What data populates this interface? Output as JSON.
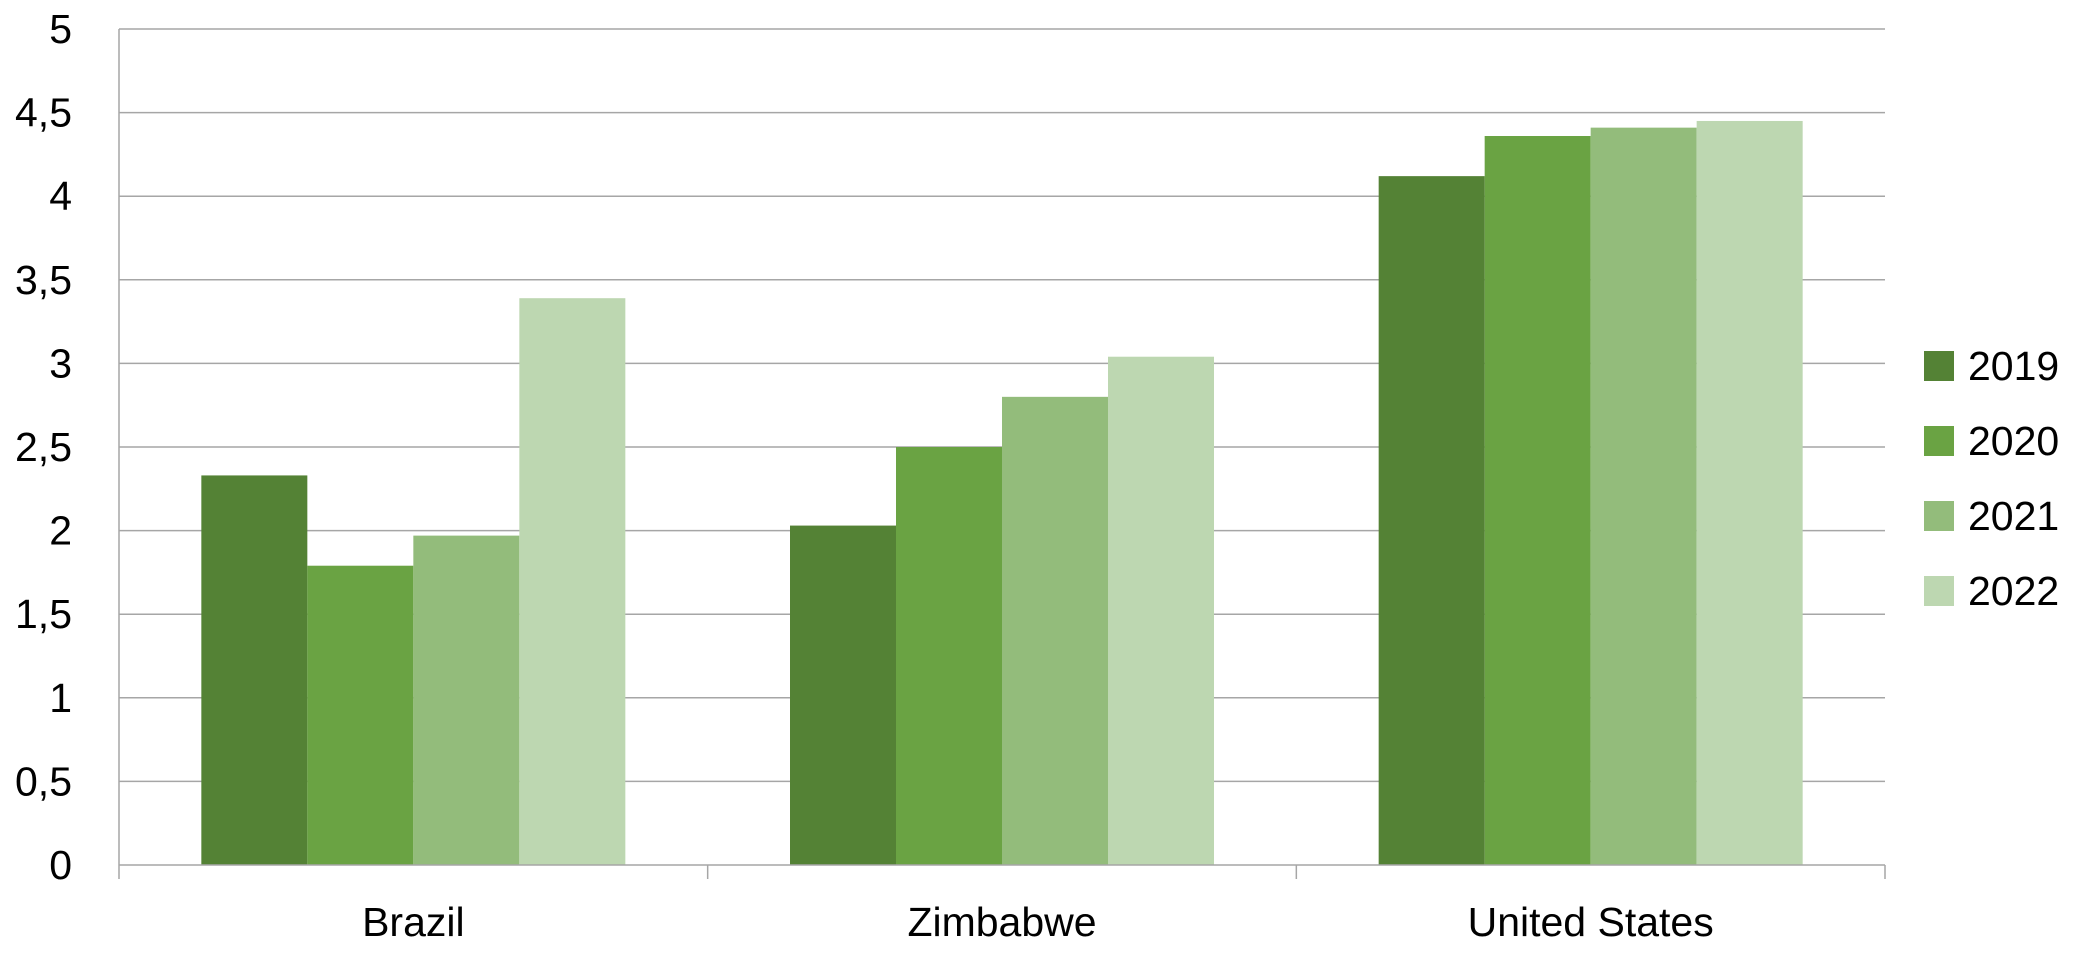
{
  "chart_data": {
    "type": "bar",
    "categories": [
      "Brazil",
      "Zimbabwe",
      "United States"
    ],
    "series": [
      {
        "name": "2019",
        "values": [
          2.33,
          2.03,
          4.12
        ],
        "color": "#548235"
      },
      {
        "name": "2020",
        "values": [
          1.79,
          2.5,
          4.36
        ],
        "color": "#6aa343"
      },
      {
        "name": "2021",
        "values": [
          1.97,
          2.8,
          4.41
        ],
        "color": "#93bc7b"
      },
      {
        "name": "2022",
        "values": [
          3.39,
          3.04,
          4.45
        ],
        "color": "#bdd7b1"
      }
    ],
    "title": "",
    "xlabel": "",
    "ylabel": "",
    "ylim": [
      0,
      5
    ],
    "yticks": [
      0,
      0.5,
      1,
      1.5,
      2,
      2.5,
      3,
      3.5,
      4,
      4.5,
      5
    ],
    "ytick_labels": [
      "0",
      "0,5",
      "1",
      "1,5",
      "2",
      "2,5",
      "3",
      "3,5",
      "4",
      "4,5",
      "5"
    ],
    "grid": true,
    "gridline_color": "#a6a6a6",
    "legend_position": "right"
  }
}
